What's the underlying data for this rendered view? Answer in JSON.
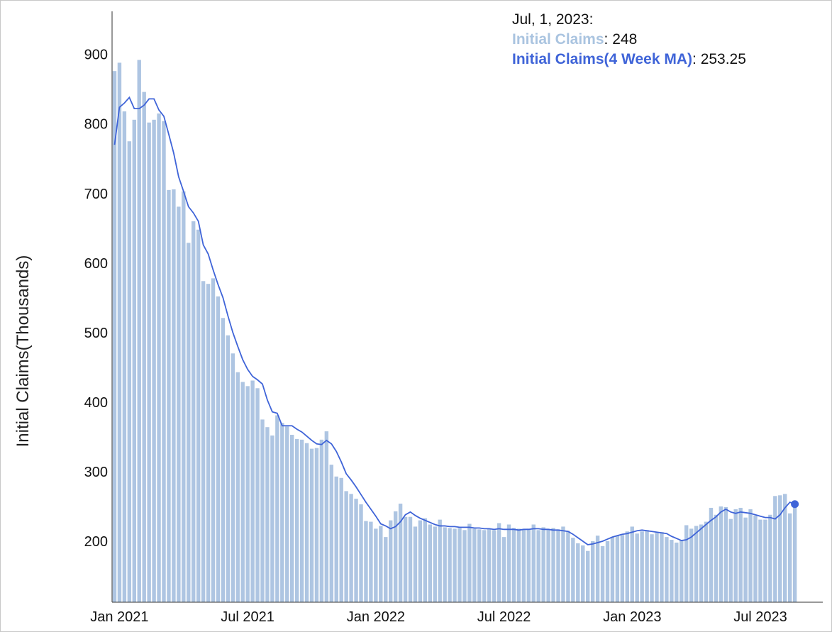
{
  "chart_data": {
    "type": "bar",
    "ylabel": "Initial Claims(Thousands)",
    "y_ticks": [
      200,
      300,
      400,
      500,
      600,
      700,
      800,
      900
    ],
    "x_ticks": [
      "Jan 2021",
      "Jul 2021",
      "Jan 2022",
      "Jul 2022",
      "Jan 2023",
      "Jul 2023"
    ],
    "x_tick_index": [
      1,
      27,
      53,
      79,
      105,
      131
    ],
    "series": [
      {
        "name": "Initial Claims",
        "type": "bar",
        "color": "#aec5e2",
        "values": [
          876,
          888,
          818,
          775,
          806,
          892,
          846,
          802,
          806,
          815,
          804,
          705,
          706,
          681,
          703,
          629,
          660,
          648,
          574,
          570,
          578,
          552,
          521,
          496,
          470,
          443,
          429,
          423,
          431,
          420,
          375,
          364,
          352,
          381,
          370,
          365,
          353,
          347,
          346,
          341,
          333,
          334,
          346,
          358,
          310,
          293,
          291,
          272,
          268,
          261,
          253,
          229,
          228,
          218,
          222,
          206,
          230,
          243,
          254,
          235,
          235,
          221,
          230,
          233,
          224,
          221,
          231,
          220,
          219,
          218,
          219,
          216,
          225,
          218,
          217,
          216,
          218,
          216,
          226,
          206,
          224,
          219,
          218,
          217,
          218,
          224,
          216,
          220,
          217,
          219,
          217,
          221,
          215,
          205,
          197,
          194,
          186,
          200,
          208,
          193,
          200,
          206,
          208,
          209,
          214,
          221,
          211,
          214,
          216,
          210,
          212,
          213,
          206,
          202,
          198,
          201,
          223,
          218,
          222,
          224,
          228,
          248,
          238,
          250,
          249,
          232,
          246,
          248,
          234,
          246,
          237,
          231,
          231,
          238,
          265,
          266,
          268,
          240,
          248
        ],
        "highlight": {
          "date": "Jul, 1, 2023",
          "value": 248
        }
      },
      {
        "name": "Initial Claims(4 Week MA)",
        "type": "line",
        "color": "#3f64d8",
        "values": [
          770,
          824,
          830,
          838,
          822,
          822,
          827,
          836,
          836,
          820,
          811,
          785,
          758,
          724,
          703,
          681,
          672,
          660,
          626,
          613,
          590,
          569,
          550,
          524,
          500,
          480,
          461,
          447,
          437,
          432,
          426,
          403,
          386,
          384,
          366,
          366,
          366,
          361,
          357,
          351,
          345,
          340,
          339,
          345,
          340,
          329,
          314,
          297,
          288,
          278,
          267,
          256,
          246,
          236,
          225,
          222,
          218,
          221,
          228,
          238,
          242,
          237,
          233,
          230,
          227,
          224,
          222,
          222,
          221,
          221,
          220,
          220,
          220,
          219,
          219,
          218,
          218,
          217,
          218,
          217,
          217,
          217,
          216,
          217,
          217,
          218,
          218,
          217,
          217,
          216,
          216,
          215,
          214,
          210,
          205,
          200,
          195,
          196,
          198,
          200,
          203,
          206,
          208,
          210,
          211,
          213,
          215,
          216,
          215,
          214,
          213,
          212,
          211,
          207,
          204,
          201,
          202,
          206,
          212,
          218,
          224,
          230,
          235,
          242,
          246,
          242,
          240,
          242,
          241,
          240,
          238,
          236,
          234,
          234,
          232,
          238,
          248,
          256,
          253.25
        ],
        "highlight": {
          "date": "Jul, 1, 2023",
          "value": 253.25
        }
      }
    ],
    "tooltip": {
      "date": "Jul, 1, 2023:",
      "bar_label": "Initial Claims",
      "bar_value": "248",
      "line_label": "Initial Claims(4 Week MA)",
      "line_value": "253.25"
    },
    "grid": false,
    "legend": "none"
  }
}
